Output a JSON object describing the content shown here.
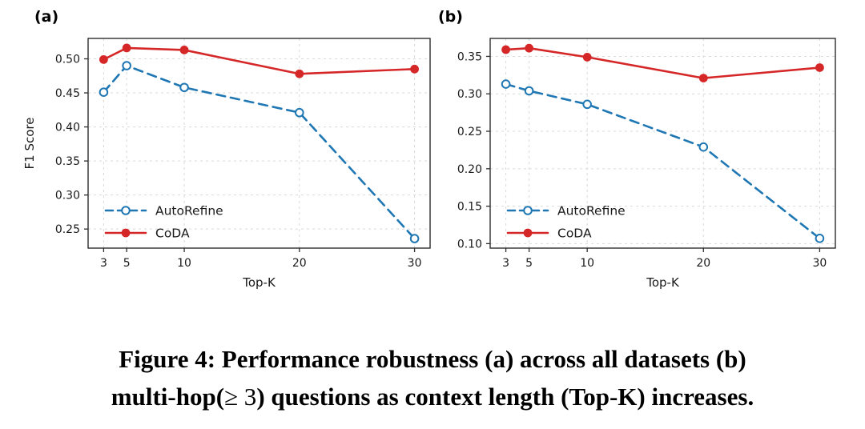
{
  "figure": {
    "panel_a_label": "(a)",
    "panel_b_label": "(b)",
    "caption": {
      "line1": "Figure 4: Performance robustness (a) across all datasets (b)",
      "line2_pre": "multi-hop(",
      "line2_math": "≥ 3",
      "line2_post": ") questions as context length (Top-K) increases."
    }
  },
  "colors": {
    "autorefine": "#1f77b4",
    "coda": "#d62728",
    "grid": "#d9d9d9",
    "spine": "#2e2e2e",
    "text": "#1a1a1a"
  },
  "chart_data": [
    {
      "type": "line",
      "panel_label": "(a)",
      "title": "",
      "xlabel": "Top-K",
      "ylabel": "F1 Score",
      "x": [
        3,
        5,
        10,
        20,
        30
      ],
      "xticks": [
        3,
        5,
        10,
        20,
        30
      ],
      "yticks": [
        0.25,
        0.3,
        0.35,
        0.4,
        0.45,
        0.5
      ],
      "xlim": [
        1.65,
        31.35
      ],
      "ylim": [
        0.222,
        0.53
      ],
      "grid": true,
      "legend_position": "lower-left",
      "series": [
        {
          "name": "AutoRefine",
          "values": [
            0.451,
            0.49,
            0.458,
            0.421,
            0.236
          ],
          "color": "#1f77b4",
          "style": "dashed",
          "marker": "open-circle"
        },
        {
          "name": "CoDA",
          "values": [
            0.499,
            0.516,
            0.513,
            0.478,
            0.485
          ],
          "color": "#d62728",
          "style": "solid",
          "marker": "filled-circle"
        }
      ]
    },
    {
      "type": "line",
      "panel_label": "(b)",
      "title": "",
      "xlabel": "Top-K",
      "ylabel": "",
      "x": [
        3,
        5,
        10,
        20,
        30
      ],
      "xticks": [
        3,
        5,
        10,
        20,
        30
      ],
      "yticks": [
        0.1,
        0.15,
        0.2,
        0.25,
        0.3,
        0.35
      ],
      "xlim": [
        1.65,
        31.35
      ],
      "ylim": [
        0.094,
        0.374
      ],
      "grid": true,
      "legend_position": "lower-left",
      "series": [
        {
          "name": "AutoRefine",
          "values": [
            0.313,
            0.304,
            0.286,
            0.229,
            0.107
          ],
          "color": "#1f77b4",
          "style": "dashed",
          "marker": "open-circle"
        },
        {
          "name": "CoDA",
          "values": [
            0.359,
            0.361,
            0.349,
            0.321,
            0.335
          ],
          "color": "#d62728",
          "style": "solid",
          "marker": "filled-circle"
        }
      ]
    }
  ]
}
